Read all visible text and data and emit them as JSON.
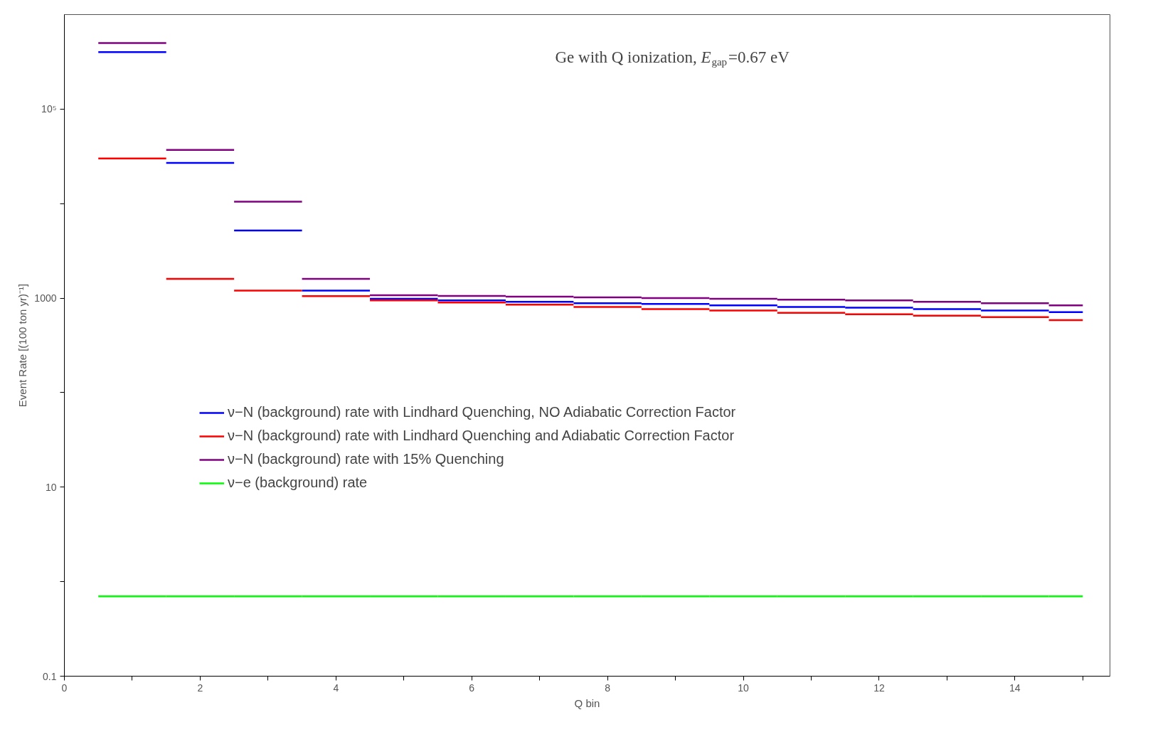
{
  "chart_data": {
    "type": "step",
    "xlabel": "Q bin",
    "ylabel": "Event Rate [(100 ton yr)⁻¹]",
    "annotations": [
      "Ge with Q ionization, E$_{gap}$=0.67 eV"
    ],
    "x": [
      0.5,
      1.5,
      2.5,
      3.5,
      4.5,
      5.5,
      6.5,
      7.5,
      8.5,
      9.5,
      10.5,
      11.5,
      12.5,
      13.5,
      14.5,
      15
    ],
    "series": [
      {
        "name": "ν−N (background) rate with Lindhard Quenching, NO Adiabatic Correction Factor",
        "color": "#0000ff",
        "values": [
          400000,
          27000,
          5200,
          1200,
          982,
          947,
          915,
          884,
          867,
          837,
          807,
          793,
          765,
          738,
          712,
          712
        ]
      },
      {
        "name": "ν−N (background) rate with Lindhard Quenching and Adiabatic Correction Factor",
        "color": "#ff0000",
        "values": [
          30000,
          1600,
          1200,
          1050,
          947,
          899,
          852,
          807,
          765,
          738,
          700,
          675,
          651,
          629,
          585,
          585
        ]
      },
      {
        "name": "ν−N (background) rate with 15% Quenching",
        "color": "#800080",
        "values": [
          500000,
          37000,
          10500,
          1600,
          1074,
          1055,
          1036,
          1018,
          1000,
          982,
          965,
          948,
          915,
          883,
          837,
          837
        ]
      },
      {
        "name": "ν−e (background) rate",
        "color": "#00ff00",
        "values": [
          0.7,
          0.7,
          0.7,
          0.7,
          0.7,
          0.7,
          0.7,
          0.7,
          0.7,
          0.7,
          0.7,
          0.7,
          0.7,
          0.7,
          0.7,
          0.7
        ]
      }
    ],
    "log": "y",
    "legend": "left",
    "grid": false,
    "xlim": [
      0,
      15.4
    ],
    "xticks": [
      0,
      {
        "value": 1,
        "label": null
      },
      2,
      {
        "value": 3,
        "label": null
      },
      4,
      {
        "value": 5,
        "label": null
      },
      6,
      {
        "value": 7,
        "label": null
      },
      8,
      {
        "value": 9,
        "label": null
      },
      10,
      {
        "value": 11,
        "label": null
      },
      12,
      {
        "value": 13,
        "label": null
      },
      14,
      {
        "value": 15,
        "label": null
      }
    ],
    "ylim": [
      0.1,
      1000000
    ],
    "yticks": [
      0.1,
      {
        "value": 1,
        "label": null
      },
      10,
      {
        "value": 100,
        "label": null
      },
      1000,
      {
        "value": 10000,
        "label": null
      },
      {
        "value": 100000,
        "label": "10⁵"
      }
    ]
  }
}
